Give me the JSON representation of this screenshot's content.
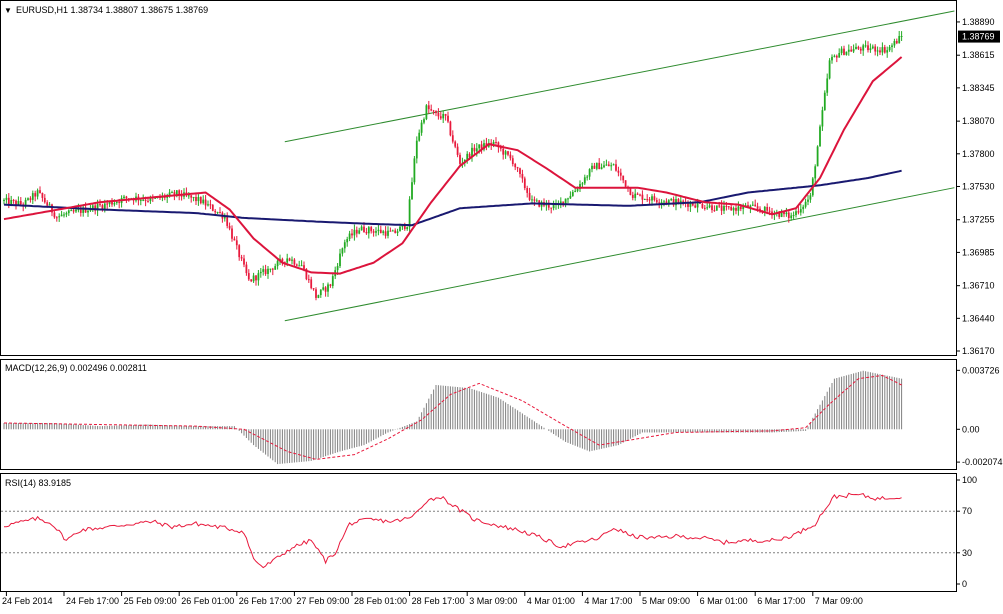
{
  "header": {
    "symbol_line": "EURUSD,H1  1.38734 1.38807 1.38675 1.38769",
    "menu_arrow": "▼"
  },
  "colors": {
    "background": "#ffffff",
    "grid_border": "#000000",
    "bull_candle": "#22aa22",
    "bear_candle": "#e8193c",
    "ma_fast": "#dc143c",
    "ma_slow": "#191970",
    "channel": "#2e8b2e",
    "macd_hist": "#808080",
    "macd_signal": "#e8193c",
    "rsi_line": "#e8193c",
    "level_line": "#808080",
    "price_badge_bg": "#000000"
  },
  "price_panel": {
    "y_ticks": [
      "1.38890",
      "1.38615",
      "1.38345",
      "1.38070",
      "1.37800",
      "1.37530",
      "1.37255",
      "1.36985",
      "1.36710",
      "1.36440",
      "1.36170"
    ],
    "current_price": "1.38769"
  },
  "macd_panel": {
    "label": "MACD(12,26,9) 0.002496 0.002811",
    "y_ticks": [
      "0.003726",
      "0.00",
      "-0.002074"
    ]
  },
  "rsi_panel": {
    "label": "RSI(14) 83.9185",
    "y_ticks": [
      "100",
      "70",
      "30",
      "0"
    ]
  },
  "time_axis": {
    "labels": [
      "24 Feb 2014",
      "24 Feb 17:00",
      "25 Feb 09:00",
      "26 Feb 01:00",
      "26 Feb 17:00",
      "27 Feb 09:00",
      "28 Feb 01:00",
      "28 Feb 17:00",
      "3 Mar 09:00",
      "4 Mar 01:00",
      "4 Mar 17:00",
      "5 Mar 09:00",
      "6 Mar 01:00",
      "6 Mar 17:00",
      "7 Mar 09:00"
    ]
  },
  "chart_data": {
    "type": "candlestick",
    "symbol": "EURUSD",
    "timeframe": "H1",
    "price_range": [
      1.3617,
      1.3903
    ],
    "anchors": [
      [
        0,
        1.3741
      ],
      [
        8,
        1.3738
      ],
      [
        14,
        1.3748
      ],
      [
        22,
        1.3728
      ],
      [
        32,
        1.3733
      ],
      [
        42,
        1.3738
      ],
      [
        52,
        1.3744
      ],
      [
        62,
        1.3742
      ],
      [
        72,
        1.3747
      ],
      [
        82,
        1.3741
      ],
      [
        92,
        1.3728
      ],
      [
        102,
        1.3675
      ],
      [
        110,
        1.3684
      ],
      [
        118,
        1.3694
      ],
      [
        124,
        1.3688
      ],
      [
        130,
        1.3662
      ],
      [
        136,
        1.3672
      ],
      [
        142,
        1.3708
      ],
      [
        148,
        1.3718
      ],
      [
        156,
        1.3716
      ],
      [
        162,
        1.3714
      ],
      [
        168,
        1.3722
      ],
      [
        172,
        1.3792
      ],
      [
        176,
        1.3818
      ],
      [
        180,
        1.3812
      ],
      [
        184,
        1.381
      ],
      [
        190,
        1.3772
      ],
      [
        196,
        1.3784
      ],
      [
        204,
        1.3789
      ],
      [
        212,
        1.3774
      ],
      [
        220,
        1.374
      ],
      [
        230,
        1.3736
      ],
      [
        238,
        1.375
      ],
      [
        246,
        1.377
      ],
      [
        254,
        1.377
      ],
      [
        262,
        1.3746
      ],
      [
        272,
        1.3742
      ],
      [
        280,
        1.374
      ],
      [
        290,
        1.3738
      ],
      [
        300,
        1.3734
      ],
      [
        310,
        1.3736
      ],
      [
        320,
        1.3732
      ],
      [
        328,
        1.3728
      ],
      [
        336,
        1.3744
      ],
      [
        340,
        1.38
      ],
      [
        344,
        1.3856
      ],
      [
        348,
        1.3864
      ],
      [
        356,
        1.3867
      ],
      [
        362,
        1.3867
      ],
      [
        368,
        1.3866
      ],
      [
        374,
        1.3877
      ]
    ],
    "ma_fast": [
      [
        0,
        1.3726
      ],
      [
        20,
        1.3733
      ],
      [
        40,
        1.374
      ],
      [
        62,
        1.3744
      ],
      [
        84,
        1.3748
      ],
      [
        94,
        1.3734
      ],
      [
        104,
        1.371
      ],
      [
        116,
        1.369
      ],
      [
        128,
        1.3682
      ],
      [
        140,
        1.3681
      ],
      [
        154,
        1.369
      ],
      [
        166,
        1.3706
      ],
      [
        178,
        1.374
      ],
      [
        190,
        1.377
      ],
      [
        202,
        1.3788
      ],
      [
        214,
        1.3783
      ],
      [
        226,
        1.3768
      ],
      [
        238,
        1.3752
      ],
      [
        252,
        1.3752
      ],
      [
        264,
        1.3752
      ],
      [
        276,
        1.3748
      ],
      [
        292,
        1.374
      ],
      [
        306,
        1.3738
      ],
      [
        320,
        1.373
      ],
      [
        330,
        1.3735
      ],
      [
        340,
        1.376
      ],
      [
        350,
        1.38
      ],
      [
        362,
        1.384
      ],
      [
        374,
        1.386
      ]
    ],
    "ma_slow": [
      [
        0,
        1.3738
      ],
      [
        40,
        1.3734
      ],
      [
        80,
        1.3731
      ],
      [
        100,
        1.3727
      ],
      [
        130,
        1.3724
      ],
      [
        154,
        1.3722
      ],
      [
        170,
        1.3721
      ],
      [
        190,
        1.3735
      ],
      [
        220,
        1.3739
      ],
      [
        260,
        1.3737
      ],
      [
        290,
        1.374
      ],
      [
        310,
        1.3748
      ],
      [
        340,
        1.3754
      ],
      [
        360,
        1.376
      ],
      [
        374,
        1.3766
      ]
    ],
    "channel_upper": [
      [
        117,
        1.379
      ],
      [
        396,
        1.3898
      ]
    ],
    "channel_lower": [
      [
        117,
        1.3642
      ],
      [
        396,
        1.3752
      ]
    ],
    "macd": {
      "range": [
        -0.00232,
        0.004
      ],
      "hist": [
        [
          0,
          0.0004
        ],
        [
          20,
          0.0004
        ],
        [
          40,
          0.0002
        ],
        [
          60,
          0.0003
        ],
        [
          80,
          0.0002
        ],
        [
          96,
          0.0002
        ],
        [
          104,
          -0.001
        ],
        [
          114,
          -0.0022
        ],
        [
          128,
          -0.002
        ],
        [
          140,
          -0.0014
        ],
        [
          150,
          -0.001
        ],
        [
          160,
          -0.0002
        ],
        [
          172,
          0.0005
        ],
        [
          180,
          0.0028
        ],
        [
          194,
          0.0026
        ],
        [
          206,
          0.002
        ],
        [
          220,
          0.0006
        ],
        [
          234,
          -0.0008
        ],
        [
          244,
          -0.0014
        ],
        [
          256,
          -0.001
        ],
        [
          266,
          -0.0002
        ],
        [
          284,
          -0.0002
        ],
        [
          298,
          -0.0002
        ],
        [
          320,
          -0.0002
        ],
        [
          334,
          -0.0001
        ],
        [
          346,
          0.0032
        ],
        [
          358,
          0.0037
        ],
        [
          374,
          0.0032
        ]
      ],
      "signal": [
        [
          0,
          0.0004
        ],
        [
          40,
          0.0003
        ],
        [
          80,
          0.0002
        ],
        [
          100,
          0.0
        ],
        [
          118,
          -0.0014
        ],
        [
          130,
          -0.0019
        ],
        [
          146,
          -0.0016
        ],
        [
          160,
          -0.0006
        ],
        [
          174,
          0.0006
        ],
        [
          186,
          0.0022
        ],
        [
          198,
          0.0029
        ],
        [
          216,
          0.0018
        ],
        [
          234,
          0.0002
        ],
        [
          248,
          -0.001
        ],
        [
          260,
          -0.0007
        ],
        [
          280,
          -0.0002
        ],
        [
          320,
          -0.0001
        ],
        [
          334,
          0.0001
        ],
        [
          344,
          0.0016
        ],
        [
          356,
          0.0032
        ],
        [
          366,
          0.0034
        ],
        [
          374,
          0.0028
        ]
      ]
    },
    "rsi": [
      [
        0,
        56
      ],
      [
        8,
        60
      ],
      [
        14,
        63
      ],
      [
        20,
        58
      ],
      [
        26,
        42
      ],
      [
        32,
        52
      ],
      [
        44,
        55
      ],
      [
        54,
        58
      ],
      [
        62,
        60
      ],
      [
        70,
        55
      ],
      [
        80,
        58
      ],
      [
        92,
        54
      ],
      [
        100,
        50
      ],
      [
        104,
        24
      ],
      [
        108,
        16
      ],
      [
        112,
        22
      ],
      [
        120,
        35
      ],
      [
        128,
        42
      ],
      [
        134,
        22
      ],
      [
        138,
        30
      ],
      [
        144,
        58
      ],
      [
        152,
        62
      ],
      [
        162,
        60
      ],
      [
        170,
        64
      ],
      [
        176,
        80
      ],
      [
        182,
        84
      ],
      [
        188,
        74
      ],
      [
        196,
        62
      ],
      [
        206,
        56
      ],
      [
        214,
        52
      ],
      [
        222,
        46
      ],
      [
        232,
        36
      ],
      [
        240,
        40
      ],
      [
        248,
        44
      ],
      [
        254,
        54
      ],
      [
        262,
        46
      ],
      [
        270,
        44
      ],
      [
        280,
        46
      ],
      [
        292,
        44
      ],
      [
        300,
        40
      ],
      [
        312,
        42
      ],
      [
        322,
        42
      ],
      [
        330,
        48
      ],
      [
        338,
        58
      ],
      [
        342,
        72
      ],
      [
        346,
        84
      ],
      [
        356,
        86
      ],
      [
        364,
        82
      ],
      [
        374,
        84
      ]
    ],
    "rsi_levels": [
      70,
      30
    ],
    "last_price": 1.38769
  }
}
